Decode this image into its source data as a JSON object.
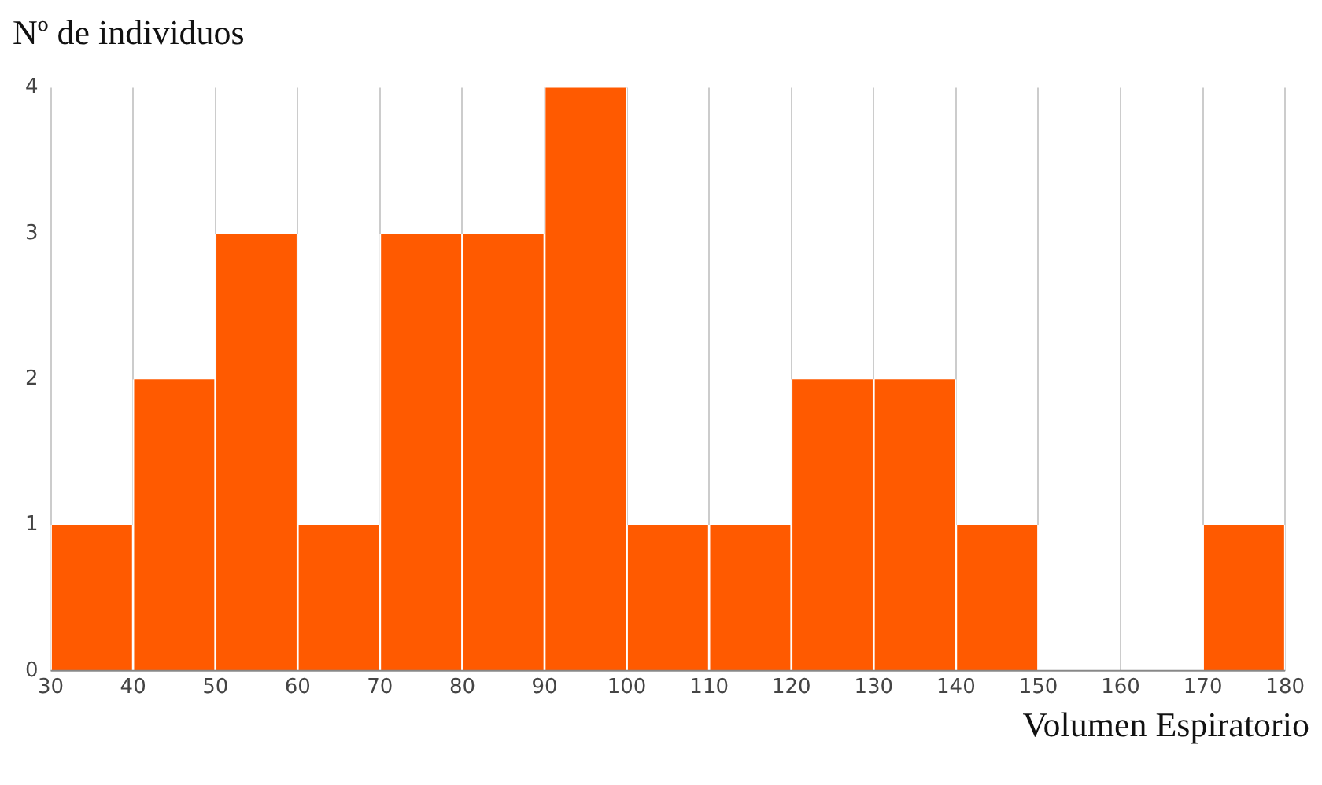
{
  "chart_data": {
    "type": "histogram",
    "xlabel": "Volumen Espiratorio",
    "ylabel": "Nº de individuos",
    "bins": [
      30,
      40,
      50,
      60,
      70,
      80,
      90,
      100,
      110,
      120,
      130,
      140,
      150,
      160,
      170,
      180
    ],
    "values": [
      1,
      2,
      3,
      1,
      3,
      3,
      4,
      1,
      1,
      2,
      2,
      1,
      0,
      0,
      1
    ],
    "color": "#ff5a00",
    "xlim": [
      30,
      180
    ],
    "xticks": [
      30,
      40,
      50,
      60,
      70,
      80,
      90,
      100,
      110,
      120,
      130,
      140,
      150,
      160,
      170,
      180
    ],
    "ylim": [
      0,
      4
    ],
    "yticks": [
      0,
      1,
      2,
      3,
      4
    ],
    "grid": "x"
  }
}
